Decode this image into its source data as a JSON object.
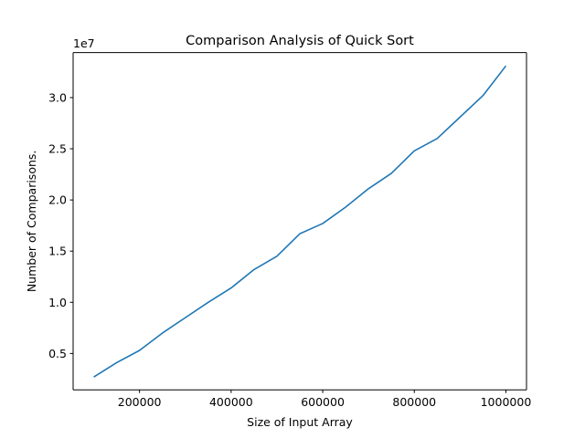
{
  "chart_data": {
    "type": "line",
    "title": "Comparison Analysis of Quick Sort",
    "xlabel": "Size of Input Array",
    "ylabel": "Number of Comparisons.",
    "y_offset_label": "1e7",
    "y_scale": 10000000,
    "xlim": [
      55000,
      1045000
    ],
    "ylim": [
      1450000,
      34400000
    ],
    "x_ticks": [
      200000,
      400000,
      600000,
      800000,
      1000000
    ],
    "x_tick_labels": [
      "200000",
      "400000",
      "600000",
      "800000",
      "1000000"
    ],
    "y_ticks": [
      5000000,
      10000000,
      15000000,
      20000000,
      25000000,
      30000000
    ],
    "y_tick_labels": [
      "0.5",
      "1.0",
      "1.5",
      "2.0",
      "2.5",
      "3.0"
    ],
    "grid": false,
    "series": [
      {
        "color": "#1f77b4",
        "x": [
          100000,
          150000,
          200000,
          250000,
          300000,
          350000,
          400000,
          450000,
          500000,
          550000,
          600000,
          650000,
          700000,
          750000,
          800000,
          850000,
          900000,
          950000,
          1000000
        ],
        "y": [
          2700000,
          4100000,
          5300000,
          7000000,
          8500000,
          10000000,
          11400000,
          13200000,
          14500000,
          16700000,
          17700000,
          19300000,
          21100000,
          22600000,
          24800000,
          26000000,
          28100000,
          30200000,
          33100000
        ]
      }
    ]
  }
}
